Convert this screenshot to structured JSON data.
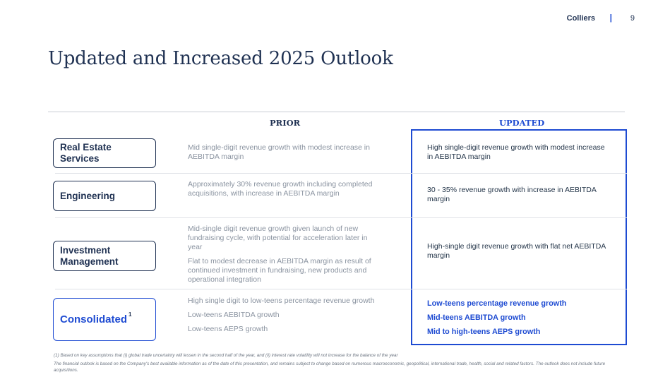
{
  "header": {
    "brand": "Colliers",
    "separator": "|",
    "page_number": "9"
  },
  "title": "Updated and Increased 2025 Outlook",
  "columns": {
    "prior": "PRIOR",
    "updated": "UPDATED"
  },
  "rows": [
    {
      "label": "Real Estate Services",
      "prior": [
        "Mid single-digit revenue growth with modest increase in AEBITDA margin"
      ],
      "updated": [
        "High single-digit revenue growth with modest increase in AEBITDA margin"
      ]
    },
    {
      "label": "Engineering",
      "prior": [
        "Approximately 30% revenue growth including completed acquisitions, with increase in AEBITDA margin"
      ],
      "updated": [
        "30 - 35% revenue growth with increase in AEBITDA margin"
      ]
    },
    {
      "label": "Investment Management",
      "prior": [
        "Mid-single digit revenue growth given launch of new fundraising cycle, with potential for acceleration later in year",
        "Flat to modest decrease in AEBITDA margin as result of continued investment in fundraising, new products and operational integration"
      ],
      "updated": [
        "High-single digit revenue growth with flat net AEBITDA margin"
      ]
    },
    {
      "label": "Consolidated",
      "superscript": "1",
      "prior": [
        "High single digit to low-teens percentage revenue growth",
        "Low-teens AEBITDA growth",
        "Low-teens AEPS growth"
      ],
      "updated": [
        "Low-teens percentage revenue growth",
        "Mid-teens AEBITDA growth",
        "Mid to high-teens AEPS growth"
      ]
    }
  ],
  "footnotes": [
    "(1) Based on key assumptions that (i) global trade uncertainty will lessen in the second half of the year, and (ii) interest rate volatility will not increase for the balance of the year",
    "The financial outlook is based on the Company's best available information as of the date of this presentation, and remains subject to change based on numerous macroeconomic, geopolitical, international trade, health, social and related factors. The outlook does not include future acquisitions."
  ]
}
